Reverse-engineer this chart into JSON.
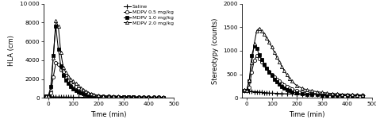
{
  "xlabel": "Time (min)",
  "left_ylabel": "HLA (cm)",
  "right_ylabel": "Stereotypy (counts)",
  "left_ylim": [
    0,
    10000
  ],
  "right_ylim": [
    0,
    2000
  ],
  "left_yticks": [
    0,
    2000,
    4000,
    6000,
    8000,
    10000
  ],
  "right_yticks": [
    0,
    500,
    1000,
    1500,
    2000
  ],
  "xlim": [
    -20,
    490
  ],
  "xticks": [
    0,
    100,
    200,
    300,
    400,
    500
  ],
  "legend_labels": [
    "Saline",
    "MDPV 0.5 mg/kg",
    "MDPV 1.0 mg/kg",
    "MDPV 2.0 mg/kg"
  ],
  "time_saline": [
    -10,
    0,
    10,
    20,
    30,
    40,
    50,
    60,
    70,
    80,
    90,
    100,
    120,
    140,
    160,
    180,
    200,
    220,
    240,
    260,
    280,
    300,
    320,
    340,
    360,
    380,
    400,
    420,
    440,
    460
  ],
  "hla_saline": [
    120,
    110,
    100,
    100,
    90,
    90,
    80,
    80,
    80,
    70,
    70,
    60,
    60,
    55,
    50,
    50,
    50,
    45,
    45,
    45,
    45,
    40,
    40,
    40,
    40,
    40,
    40,
    40,
    40,
    40
  ],
  "stereo_saline": [
    160,
    150,
    140,
    140,
    130,
    130,
    120,
    120,
    110,
    110,
    100,
    100,
    95,
    90,
    85,
    80,
    75,
    70,
    70,
    65,
    65,
    60,
    60,
    60,
    55,
    55,
    55,
    50,
    50,
    50
  ],
  "time_05": [
    -10,
    0,
    10,
    20,
    30,
    40,
    50,
    60,
    70,
    80,
    90,
    100,
    110,
    120,
    130,
    140,
    150,
    160,
    170,
    180,
    200,
    220,
    240,
    260,
    280,
    300,
    320,
    340,
    360,
    380,
    400,
    420,
    440,
    460
  ],
  "hla_05": [
    150,
    150,
    500,
    2200,
    3700,
    3600,
    3000,
    2500,
    2100,
    1800,
    1600,
    1400,
    1200,
    1000,
    850,
    700,
    580,
    460,
    370,
    300,
    220,
    180,
    160,
    140,
    120,
    110,
    100,
    90,
    80,
    75,
    70,
    65,
    60,
    55
  ],
  "stereo_05": [
    160,
    150,
    220,
    550,
    800,
    900,
    830,
    760,
    690,
    620,
    560,
    500,
    450,
    400,
    350,
    310,
    270,
    240,
    210,
    185,
    155,
    130,
    115,
    100,
    90,
    80,
    75,
    70,
    65,
    60,
    58,
    55,
    52,
    50
  ],
  "time_10": [
    -10,
    0,
    10,
    20,
    30,
    40,
    50,
    60,
    70,
    80,
    90,
    100,
    110,
    120,
    130,
    140,
    150,
    160,
    170,
    180,
    200,
    220,
    240,
    260,
    280,
    300,
    320,
    340,
    360,
    380,
    400,
    420,
    440,
    460
  ],
  "hla_10": [
    150,
    150,
    1200,
    4500,
    7600,
    5200,
    3400,
    2400,
    1900,
    1500,
    1200,
    950,
    780,
    620,
    500,
    400,
    330,
    270,
    220,
    180,
    140,
    115,
    100,
    90,
    80,
    70,
    65,
    60,
    55,
    52,
    50,
    48,
    45,
    45
  ],
  "stereo_10": [
    160,
    150,
    350,
    900,
    1100,
    1050,
    920,
    820,
    720,
    630,
    550,
    470,
    400,
    345,
    290,
    245,
    205,
    175,
    150,
    125,
    100,
    85,
    75,
    70,
    65,
    60,
    56,
    52,
    50,
    48,
    46,
    44,
    42,
    40
  ],
  "time_20": [
    -10,
    0,
    10,
    20,
    30,
    40,
    50,
    60,
    70,
    80,
    90,
    100,
    110,
    120,
    130,
    140,
    150,
    160,
    170,
    180,
    200,
    220,
    240,
    260,
    280,
    300,
    320,
    340,
    360,
    380,
    400,
    420,
    440,
    460
  ],
  "hla_20": [
    150,
    150,
    900,
    4200,
    8200,
    7600,
    4800,
    3200,
    2700,
    2300,
    2000,
    1750,
    1500,
    1250,
    1050,
    850,
    680,
    540,
    430,
    340,
    260,
    215,
    185,
    165,
    145,
    130,
    115,
    105,
    95,
    87,
    80,
    73,
    67,
    60
  ],
  "stereo_20": [
    170,
    160,
    380,
    750,
    1150,
    1430,
    1480,
    1420,
    1350,
    1270,
    1180,
    1080,
    970,
    870,
    770,
    670,
    575,
    490,
    415,
    350,
    255,
    205,
    170,
    148,
    130,
    115,
    102,
    92,
    83,
    76,
    70,
    65,
    60,
    56
  ]
}
